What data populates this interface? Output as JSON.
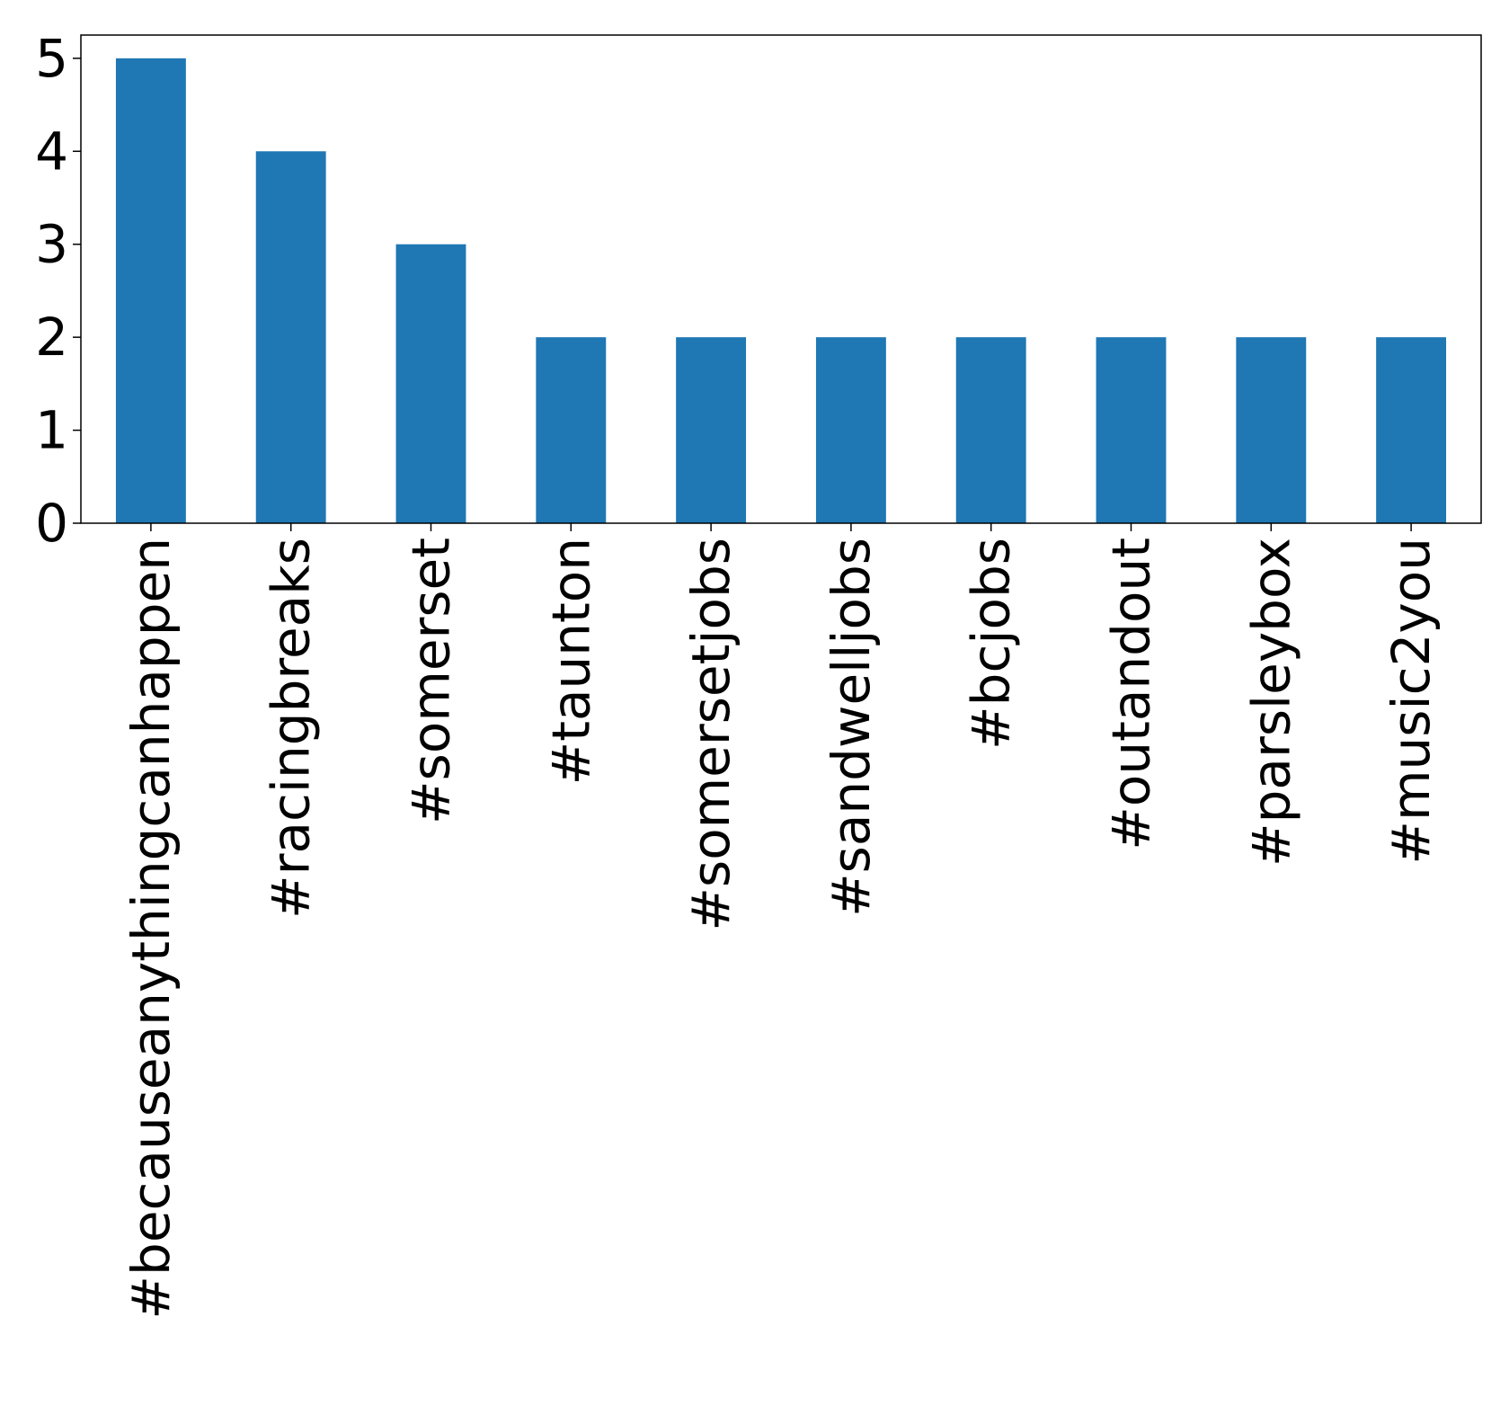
{
  "chart_data": {
    "type": "bar",
    "title": "",
    "xlabel": "",
    "ylabel": "",
    "categories": [
      "#becauseanythingcanhappen",
      "#racingbreaks",
      "#somerset",
      "#taunton",
      "#somersetjobs",
      "#sandwelljobs",
      "#bcjobs",
      "#outandout",
      "#parsleybox",
      "#music2you"
    ],
    "values": [
      5,
      4,
      3,
      2,
      2,
      2,
      2,
      2,
      2,
      2
    ],
    "ylim": [
      0,
      5.25
    ],
    "yticks": [
      "0",
      "1",
      "2",
      "3",
      "4",
      "5"
    ],
    "grid": false,
    "legend": "none",
    "colors": {
      "bar": "#1f77b4",
      "axis": "#000000",
      "text": "#000000"
    }
  }
}
